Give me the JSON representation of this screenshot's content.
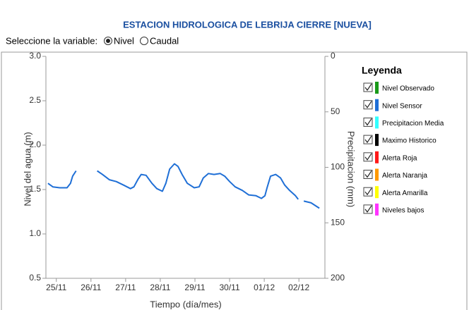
{
  "chart_data": {
    "type": "line",
    "title": "ESTACION HIDROLOGICA DE LEBRIJA CIERRE [NUEVA]",
    "selector": {
      "label": "Seleccione la variable:",
      "options": [
        "Nivel",
        "Caudal"
      ],
      "selected": 0
    },
    "y_label": "Nivel del agua (m)",
    "y2_label": "Precipitacion (mm)",
    "x_label": "Tiempo (día/mes)",
    "xlim": [
      -0.3,
      7.75
    ],
    "xticks": [
      {
        "value": 0,
        "label": "25/11"
      },
      {
        "value": 1,
        "label": "26/11"
      },
      {
        "value": 2,
        "label": "27/11"
      },
      {
        "value": 3,
        "label": "28/11"
      },
      {
        "value": 4,
        "label": "29/11"
      },
      {
        "value": 5,
        "label": "30/11"
      },
      {
        "value": 6,
        "label": "01/12"
      },
      {
        "value": 7,
        "label": "02/12"
      }
    ],
    "ylim": [
      0.5,
      3.0
    ],
    "yticks": [
      0.5,
      {
        "value": 1.0,
        "label": "1.0"
      },
      1.5,
      {
        "value": 2.0,
        "label": "2.0"
      },
      2.5,
      {
        "value": 3.0,
        "label": "3.0"
      }
    ],
    "y2lim": [
      200,
      0
    ],
    "y2ticks": [
      0,
      50,
      100,
      150,
      200
    ],
    "series": [
      {
        "color": "#1f6fd6",
        "x": [
          -0.24,
          -0.1,
          0.1,
          0.31,
          0.41,
          0.47,
          0.57,
          null,
          1.18,
          1.33,
          1.53,
          1.73,
          1.94,
          2.14,
          2.24,
          2.35,
          2.45,
          2.59,
          2.76,
          2.9,
          3.06,
          3.16,
          3.27,
          3.41,
          3.51,
          3.63,
          3.78,
          3.98,
          4.12,
          4.24,
          4.39,
          4.55,
          4.73,
          4.86,
          5.0,
          5.16,
          5.37,
          5.55,
          5.76,
          5.92,
          6.02,
          6.08,
          6.18,
          6.33,
          6.47,
          6.59,
          6.73,
          6.9,
          6.98,
          null,
          7.14,
          7.35,
          7.59
        ],
        "values": [
          1.57,
          1.53,
          1.52,
          1.52,
          1.57,
          1.65,
          1.71,
          null,
          1.71,
          1.67,
          1.61,
          1.59,
          1.55,
          1.51,
          1.53,
          1.61,
          1.67,
          1.66,
          1.57,
          1.51,
          1.48,
          1.57,
          1.73,
          1.79,
          1.76,
          1.67,
          1.57,
          1.52,
          1.53,
          1.63,
          1.68,
          1.67,
          1.68,
          1.65,
          1.59,
          1.53,
          1.49,
          1.44,
          1.43,
          1.4,
          1.43,
          1.52,
          1.65,
          1.67,
          1.63,
          1.55,
          1.49,
          1.43,
          1.39,
          null,
          1.37,
          1.35,
          1.29
        ]
      }
    ],
    "legend": {
      "title": "Leyenda",
      "items": [
        {
          "name": "Nivel Observado",
          "color": "#1a9a1a",
          "checked": true
        },
        {
          "name": "Nivel Sensor",
          "color": "#1f6fd6",
          "checked": true
        },
        {
          "name": "Precipitacion Media",
          "color": "#33ffff",
          "checked": true
        },
        {
          "name": "Maximo Historico",
          "color": "#000000",
          "checked": true
        },
        {
          "name": "Alerta Roja",
          "color": "#ff1a1a",
          "checked": true
        },
        {
          "name": "Alerta Naranja",
          "color": "#ff9900",
          "checked": true
        },
        {
          "name": "Alerta Amarilla",
          "color": "#ffff00",
          "checked": true
        },
        {
          "name": "Niveles bajos",
          "color": "#ff33ff",
          "checked": true
        }
      ]
    }
  }
}
